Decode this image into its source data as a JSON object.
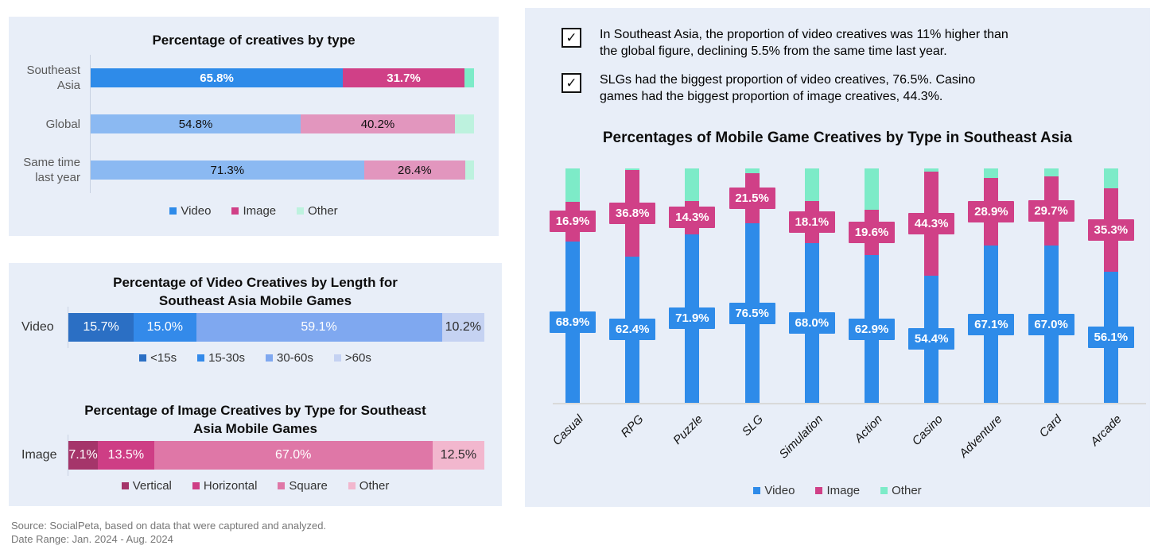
{
  "palette": {
    "panel_bg": "#E8EEF8",
    "strong": [
      "#2E8BE9",
      "#D04087",
      "#7DEBC8"
    ],
    "light": [
      "#8BB9F2",
      "#E296BE",
      "#BDF2DE"
    ],
    "video_length": [
      "#2B6FC4",
      "#338AEA",
      "#7FA8F0",
      "#C5D2F2"
    ],
    "image_types": [
      "#A5356A",
      "#CE3E85",
      "#DF77A7",
      "#F2B7CE"
    ],
    "axis_line": "#C9D2E2"
  },
  "insights": {
    "items": [
      "In Southeast Asia, the proportion of video creatives was 11% higher than\nthe global figure, declining 5.5% from the same time last year.",
      "SLGs had the biggest proportion of video creatives, 76.5%. Casino\ngames had the biggest proportion of image creatives, 44.3%."
    ]
  },
  "source": {
    "line1": "Source: SocialPeta, based on data that were captured and analyzed.",
    "line2": "Date Range: Jan. 2024 - Aug. 2024"
  },
  "chart_data": [
    {
      "id": "creatives-by-type",
      "type": "bar",
      "orientation": "horizontal-stacked",
      "title": "Percentage of creatives by type",
      "categories": [
        "Southeast Asia",
        "Global",
        "Same time last year"
      ],
      "series": [
        {
          "name": "Video",
          "values": [
            65.8,
            54.8,
            71.3
          ]
        },
        {
          "name": "Image",
          "values": [
            31.7,
            40.2,
            26.4
          ]
        },
        {
          "name": "Other",
          "values": [
            2.5,
            5.0,
            2.3
          ]
        }
      ],
      "labels_shown": [
        "Video",
        "Image"
      ],
      "xlim": [
        0,
        100
      ],
      "legend": [
        "Video",
        "Image",
        "Other"
      ],
      "legend_position": "bottom"
    },
    {
      "id": "video-creatives-by-length",
      "type": "bar",
      "orientation": "horizontal-stacked",
      "title": "Percentage of Video Creatives by Length for\nSoutheast Asia Mobile Games",
      "categories": [
        "Video"
      ],
      "series": [
        {
          "name": "<15s",
          "values": [
            15.7
          ]
        },
        {
          "name": "15-30s",
          "values": [
            15.0
          ]
        },
        {
          "name": "30-60s",
          "values": [
            59.1
          ]
        },
        {
          "name": ">60s",
          "values": [
            10.2
          ]
        }
      ],
      "xlim": [
        0,
        100
      ],
      "legend": [
        "<15s",
        "15-30s",
        "30-60s",
        ">60s"
      ],
      "legend_position": "bottom"
    },
    {
      "id": "image-creatives-by-type",
      "type": "bar",
      "orientation": "horizontal-stacked",
      "title": "Percentage of Image Creatives by Type for Southeast\nAsia Mobile Games",
      "categories": [
        "Image"
      ],
      "series": [
        {
          "name": "Vertical",
          "values": [
            7.1
          ]
        },
        {
          "name": "Horizontal",
          "values": [
            13.5
          ]
        },
        {
          "name": "Square",
          "values": [
            67.0
          ]
        },
        {
          "name": "Other",
          "values": [
            12.5
          ]
        }
      ],
      "xlim": [
        0,
        100
      ],
      "legend": [
        "Vertical",
        "Horizontal",
        "Square",
        "Other"
      ],
      "legend_position": "bottom"
    },
    {
      "id": "genre-creatives-by-type",
      "type": "bar",
      "orientation": "vertical-stacked",
      "title": "Percentages of Mobile Game Creatives by Type in Southeast Asia",
      "categories": [
        "Casual",
        "RPG",
        "Puzzle",
        "SLG",
        "Simulation",
        "Action",
        "Casino",
        "Adventure",
        "Card",
        "Arcade"
      ],
      "series": [
        {
          "name": "Video",
          "values": [
            68.9,
            62.4,
            71.9,
            76.5,
            68.0,
            62.9,
            54.4,
            67.1,
            67.0,
            56.1
          ]
        },
        {
          "name": "Image",
          "values": [
            16.9,
            36.8,
            14.3,
            21.5,
            18.1,
            19.6,
            44.3,
            28.9,
            29.7,
            35.3
          ]
        },
        {
          "name": "Other",
          "values": [
            14.2,
            0.8,
            13.8,
            2.0,
            13.9,
            17.5,
            1.3,
            4.0,
            3.3,
            8.6
          ]
        }
      ],
      "labels_shown": [
        "Video",
        "Image"
      ],
      "ylim": [
        0,
        100
      ],
      "legend": [
        "Video",
        "Image",
        "Other"
      ],
      "legend_position": "bottom"
    }
  ]
}
